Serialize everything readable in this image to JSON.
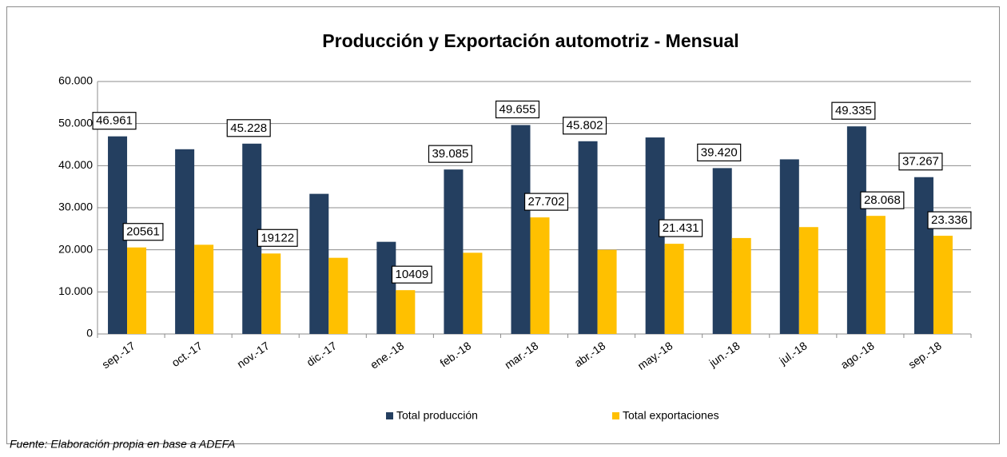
{
  "chart_data": {
    "type": "bar",
    "title": "Producción y Exportación automotriz - Mensual",
    "source": "Fuente: Elaboración propia en base a ADEFA",
    "categories": [
      "sep.-17",
      "oct.-17",
      "nov.-17",
      "dic.-17",
      "ene.-18",
      "feb.-18",
      "mar.-18",
      "abr.-18",
      "may.-18",
      "jun.-18",
      "jul.-18",
      "ago.-18",
      "sep.-18"
    ],
    "series": [
      {
        "name": "Total producción",
        "color": "#243f60",
        "values": [
          46961,
          43900,
          45228,
          33300,
          21900,
          39085,
          49655,
          45802,
          46700,
          39420,
          41500,
          49335,
          37267
        ],
        "value_labels": [
          "46.961",
          null,
          "45.228",
          null,
          null,
          "39.085",
          "49.655",
          "45.802",
          null,
          "39.420",
          null,
          "49.335",
          "37.267"
        ]
      },
      {
        "name": "Total exportaciones",
        "color": "#ffc000",
        "values": [
          20561,
          21200,
          19122,
          18100,
          10409,
          19300,
          27702,
          20000,
          21431,
          22800,
          25400,
          28068,
          23336
        ],
        "value_labels": [
          "20561",
          null,
          "19122",
          null,
          "10409",
          null,
          "27.702",
          null,
          "21.431",
          null,
          null,
          "28.068",
          "23.336"
        ]
      }
    ],
    "ylim": [
      0,
      60000
    ],
    "yticks": [
      0,
      {
        "value": 10000,
        "label": "10.000"
      },
      {
        "value": 20000,
        "label": "20.000"
      },
      {
        "value": 30000,
        "label": "30.000"
      },
      {
        "value": 40000,
        "label": "40.000"
      },
      {
        "value": 50000,
        "label": "50.000"
      },
      {
        "value": 60000,
        "label": "60.000"
      }
    ],
    "grid": true,
    "legend": "bottom"
  }
}
